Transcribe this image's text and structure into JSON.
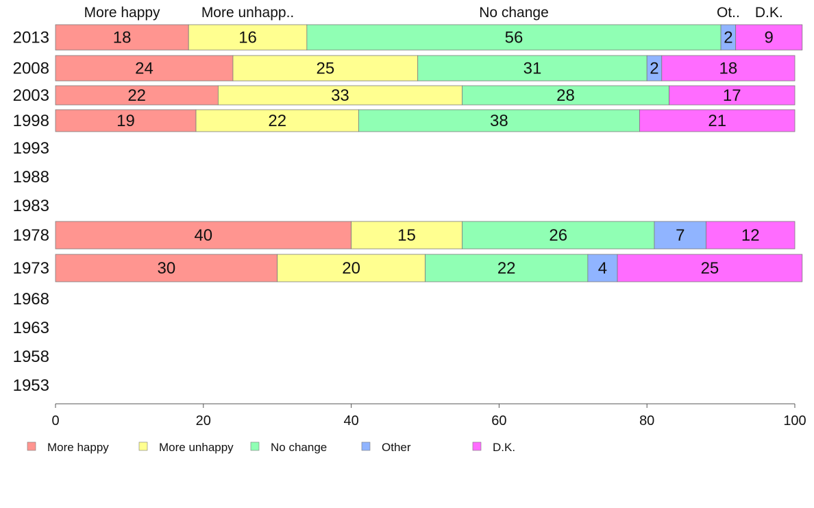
{
  "chart_data": {
    "type": "bar",
    "orientation": "horizontal",
    "stacked": true,
    "categories": [
      "2013",
      "2008",
      "2003",
      "1998",
      "1993",
      "1988",
      "1983",
      "1978",
      "1973",
      "1968",
      "1963",
      "1958",
      "1953"
    ],
    "series": [
      {
        "name": "More happy",
        "header": "More happy",
        "color": "#ff9590",
        "values": [
          18,
          24,
          22,
          19,
          null,
          null,
          null,
          40,
          30,
          null,
          null,
          null,
          null
        ]
      },
      {
        "name": "More unhappy",
        "header": "More unhapp..",
        "color": "#ffff90",
        "values": [
          16,
          25,
          33,
          22,
          null,
          null,
          null,
          15,
          20,
          null,
          null,
          null,
          null
        ]
      },
      {
        "name": "No change",
        "header": "No change",
        "color": "#90ffb4",
        "values": [
          56,
          31,
          28,
          38,
          null,
          null,
          null,
          26,
          22,
          null,
          null,
          null,
          null
        ]
      },
      {
        "name": "Other",
        "header": "Ot..",
        "color": "#90b4ff",
        "values": [
          2,
          2,
          null,
          null,
          null,
          null,
          null,
          7,
          4,
          null,
          null,
          null,
          null
        ]
      },
      {
        "name": "D.K.",
        "header": "D.K.",
        "color": "#ff6cff",
        "values": [
          9,
          18,
          17,
          21,
          null,
          null,
          null,
          12,
          25,
          null,
          null,
          null,
          null
        ]
      }
    ],
    "xlim": [
      0,
      100
    ],
    "xticks": [
      0,
      20,
      40,
      60,
      80,
      100
    ],
    "title": "",
    "xlabel": "",
    "ylabel": "",
    "grid": false,
    "legend_position": "bottom"
  }
}
